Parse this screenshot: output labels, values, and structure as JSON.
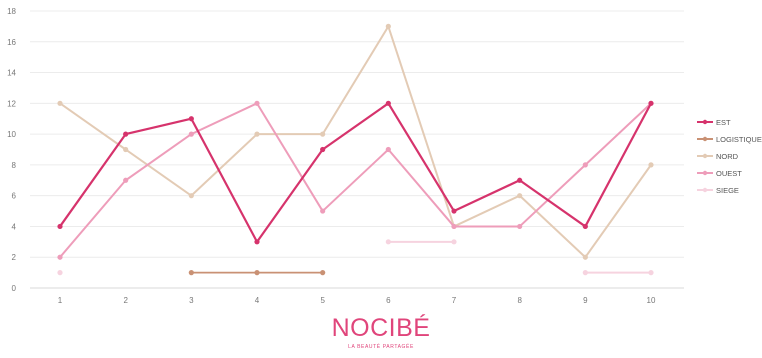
{
  "chart_data": {
    "type": "line",
    "x": [
      1,
      2,
      3,
      4,
      5,
      6,
      7,
      8,
      9,
      10
    ],
    "ylim": [
      0,
      18
    ],
    "yticks": [
      0,
      2,
      4,
      6,
      8,
      10,
      12,
      14,
      16,
      18
    ],
    "grid": true,
    "legend_position": "right",
    "series": [
      {
        "name": "EST",
        "color": "#d6336c",
        "values": [
          4,
          10,
          11,
          3,
          9,
          12,
          5,
          7,
          4,
          12
        ]
      },
      {
        "name": "LOGISTIQUE",
        "color": "#c99174",
        "values": [
          null,
          null,
          1,
          1,
          1,
          null,
          null,
          null,
          null,
          null
        ]
      },
      {
        "name": "NORD",
        "color": "#e3cbb5",
        "values": [
          12,
          9,
          6,
          10,
          10,
          17,
          4,
          6,
          2,
          8
        ]
      },
      {
        "name": "OUEST",
        "color": "#ee9dba",
        "values": [
          2,
          7,
          10,
          12,
          5,
          9,
          4,
          4,
          8,
          12
        ]
      },
      {
        "name": "SIEGE",
        "color": "#f6d3df",
        "values": [
          1,
          null,
          null,
          null,
          null,
          3,
          3,
          null,
          1,
          1
        ]
      }
    ]
  },
  "logo": {
    "brand": "NOCIBÉ",
    "tagline": "LA BEAUTÉ PARTAGÉE"
  }
}
